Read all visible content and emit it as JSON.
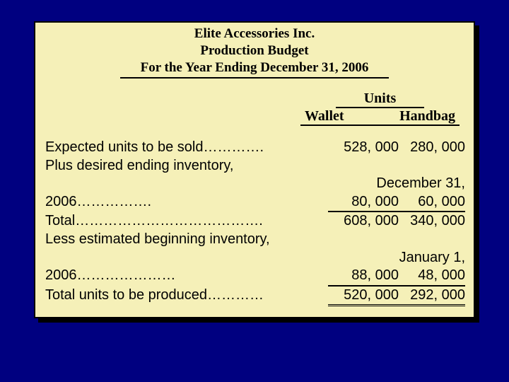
{
  "header": {
    "company": "Elite Accessories Inc.",
    "title": "Production Budget",
    "period": "For the Year Ending December 31, 2006"
  },
  "columns": {
    "group": "Units",
    "col1": "Wallet",
    "col2": "Handbag"
  },
  "rows": {
    "expected": {
      "label": "Expected units to be sold………….",
      "wallet": "528, 000",
      "handbag": "280, 000"
    },
    "plus_line": "Plus desired ending inventory,",
    "date1": "December 31,",
    "ending": {
      "label": "2006…………….",
      "wallet": "80, 000",
      "handbag": "60, 000"
    },
    "total": {
      "label": "Total………………………………….",
      "wallet": "608, 000",
      "handbag": "340, 000"
    },
    "less_line": "Less estimated beginning inventory,",
    "date2": "January 1,",
    "beginning": {
      "label": "2006…………………",
      "wallet": "88, 000",
      "handbag": "48, 000"
    },
    "produced": {
      "label": "Total units to be produced…………",
      "wallet": "520, 000",
      "handbag": "292, 000"
    }
  },
  "colors": {
    "page_bg": "#000080",
    "panel_bg": "#f5f0b8",
    "border": "#000000",
    "text": "#000000"
  }
}
